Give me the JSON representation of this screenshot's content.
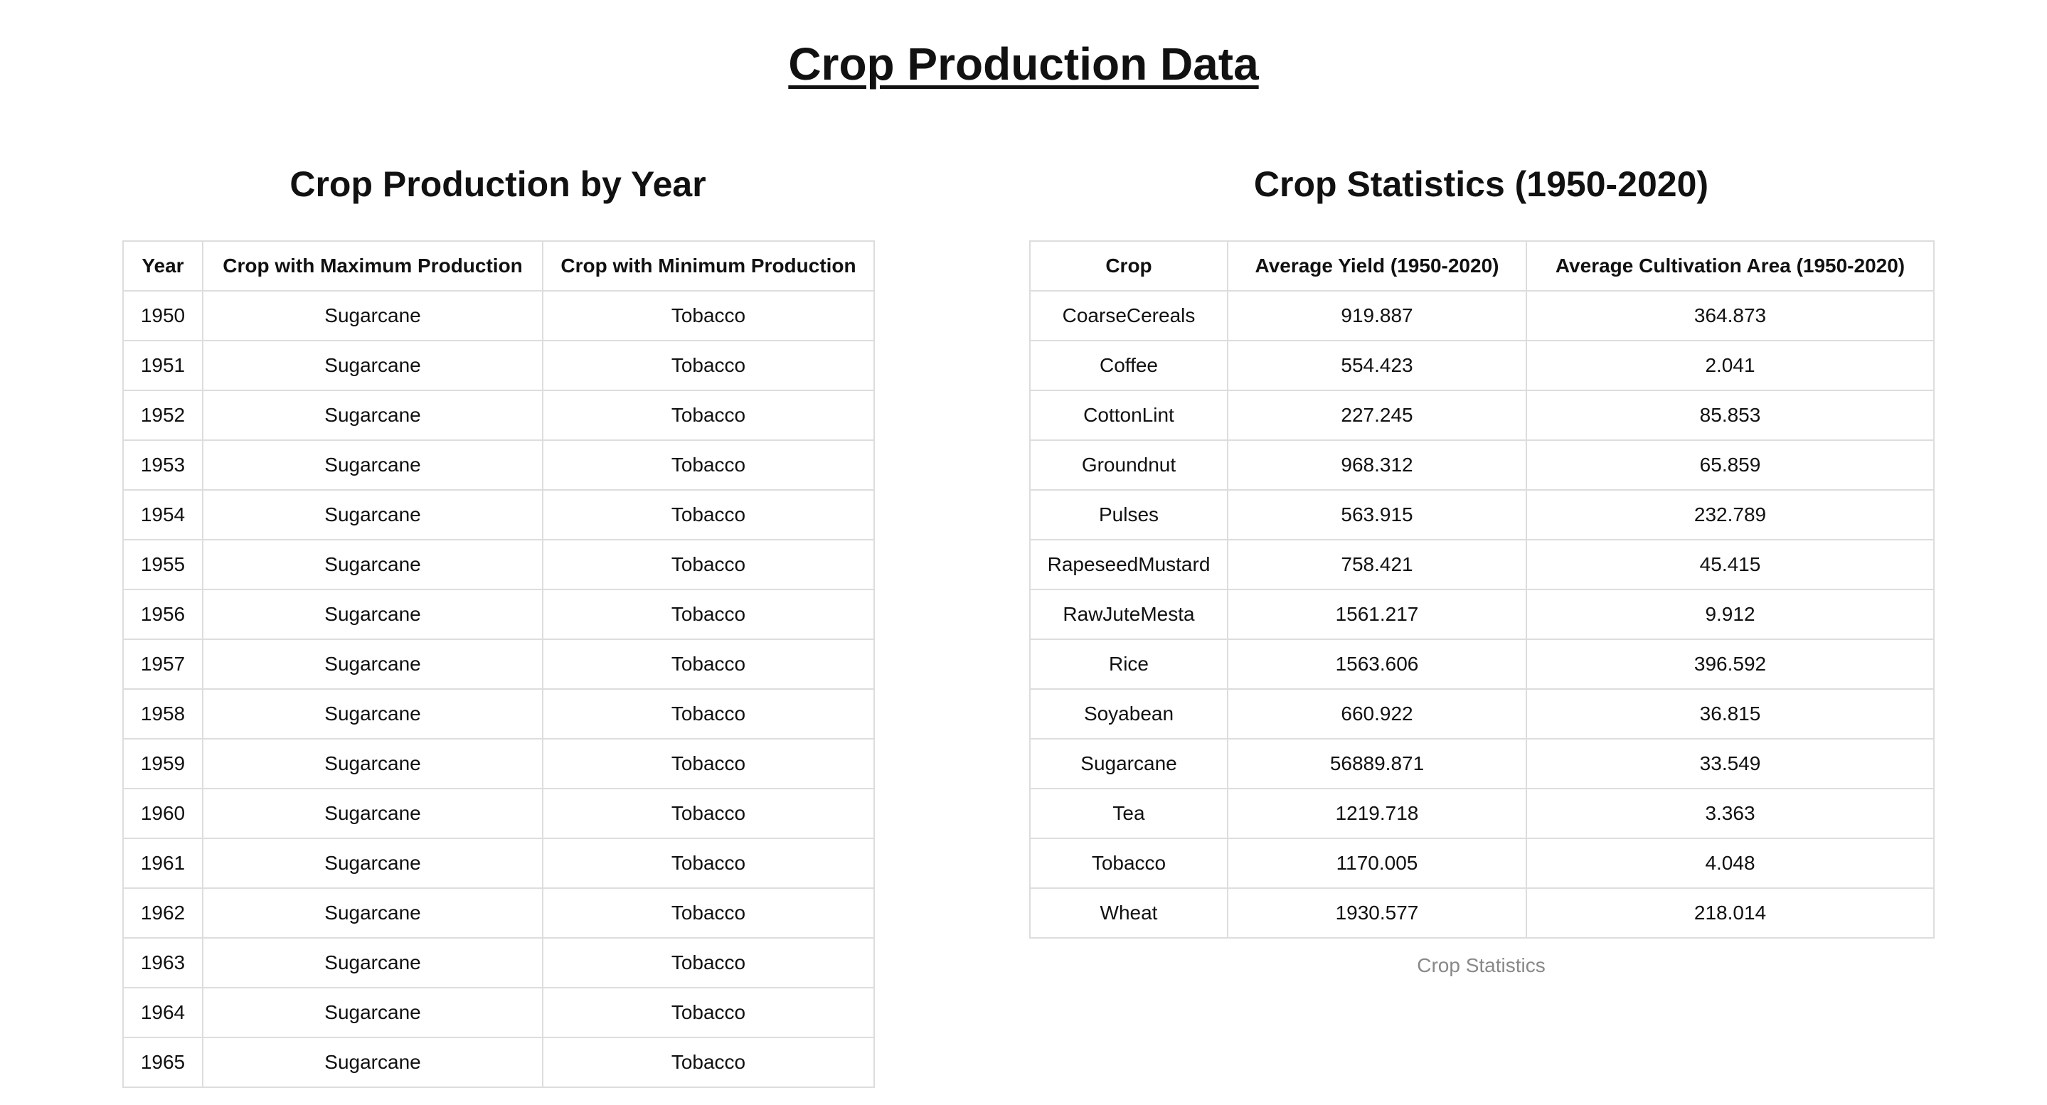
{
  "page": {
    "title": "Crop Production Data"
  },
  "by_year": {
    "title": "Crop Production by Year",
    "headers": [
      "Year",
      "Crop with Maximum Production",
      "Crop with Minimum Production"
    ],
    "rows": [
      [
        "1950",
        "Sugarcane",
        "Tobacco"
      ],
      [
        "1951",
        "Sugarcane",
        "Tobacco"
      ],
      [
        "1952",
        "Sugarcane",
        "Tobacco"
      ],
      [
        "1953",
        "Sugarcane",
        "Tobacco"
      ],
      [
        "1954",
        "Sugarcane",
        "Tobacco"
      ],
      [
        "1955",
        "Sugarcane",
        "Tobacco"
      ],
      [
        "1956",
        "Sugarcane",
        "Tobacco"
      ],
      [
        "1957",
        "Sugarcane",
        "Tobacco"
      ],
      [
        "1958",
        "Sugarcane",
        "Tobacco"
      ],
      [
        "1959",
        "Sugarcane",
        "Tobacco"
      ],
      [
        "1960",
        "Sugarcane",
        "Tobacco"
      ],
      [
        "1961",
        "Sugarcane",
        "Tobacco"
      ],
      [
        "1962",
        "Sugarcane",
        "Tobacco"
      ],
      [
        "1963",
        "Sugarcane",
        "Tobacco"
      ],
      [
        "1964",
        "Sugarcane",
        "Tobacco"
      ],
      [
        "1965",
        "Sugarcane",
        "Tobacco"
      ]
    ]
  },
  "stats": {
    "title": "Crop Statistics (1950-2020)",
    "headers": [
      "Crop",
      "Average Yield (1950-2020)",
      "Average Cultivation Area (1950-2020)"
    ],
    "rows": [
      [
        "CoarseCereals",
        "919.887",
        "364.873"
      ],
      [
        "Coffee",
        "554.423",
        "2.041"
      ],
      [
        "CottonLint",
        "227.245",
        "85.853"
      ],
      [
        "Groundnut",
        "968.312",
        "65.859"
      ],
      [
        "Pulses",
        "563.915",
        "232.789"
      ],
      [
        "RapeseedMustard",
        "758.421",
        "45.415"
      ],
      [
        "RawJuteMesta",
        "1561.217",
        "9.912"
      ],
      [
        "Rice",
        "1563.606",
        "396.592"
      ],
      [
        "Soyabean",
        "660.922",
        "36.815"
      ],
      [
        "Sugarcane",
        "56889.871",
        "33.549"
      ],
      [
        "Tea",
        "1219.718",
        "3.363"
      ],
      [
        "Tobacco",
        "1170.005",
        "4.048"
      ],
      [
        "Wheat",
        "1930.577",
        "218.014"
      ]
    ],
    "caption": "Crop Statistics"
  }
}
